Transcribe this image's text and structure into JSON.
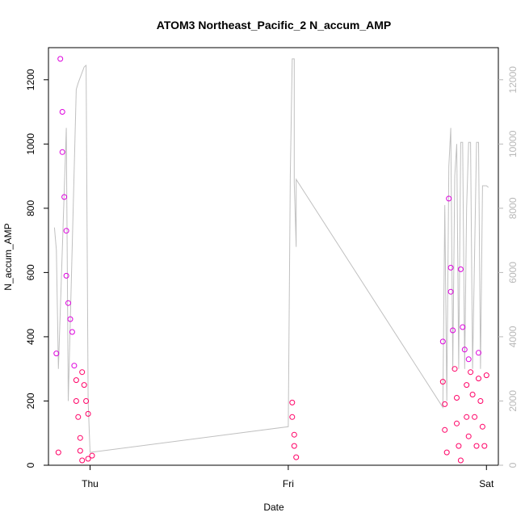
{
  "chart_data": {
    "type": "scatter",
    "title": "ATOM3 Northeast_Pacific_2 N_accum_AMP",
    "xlabel": "Date",
    "ylabel": "N_accum_AMP",
    "x_tick_labels": [
      "Thu",
      "Fri",
      "Sat"
    ],
    "x_tick_positions_days": [
      0,
      1,
      2
    ],
    "xlim_days": [
      -0.21,
      2.06
    ],
    "ylim_left": [
      0,
      1300
    ],
    "yticks_left": [
      0,
      200,
      400,
      600,
      800,
      1000,
      1200
    ],
    "ylim_right": [
      0,
      13000
    ],
    "yticks_right": [
      0,
      2000,
      4000,
      6000,
      8000,
      10000,
      12000
    ],
    "grid": false,
    "colors": {
      "scatter_low": "#ff0066",
      "scatter_high": "#dd00dd",
      "secondary_line": "#c0c0c0",
      "right_axis": "#b8b8b8"
    },
    "scatter_series": {
      "name": "N_accum_AMP",
      "x_days": [
        -0.17,
        -0.16,
        -0.15,
        -0.14,
        -0.14,
        -0.13,
        -0.12,
        -0.12,
        -0.11,
        -0.1,
        -0.09,
        -0.08,
        -0.07,
        -0.07,
        -0.06,
        -0.05,
        -0.05,
        -0.04,
        -0.04,
        -0.03,
        -0.02,
        -0.01,
        -0.01,
        0.01,
        1.02,
        1.02,
        1.03,
        1.03,
        1.04,
        1.78,
        1.78,
        1.79,
        1.79,
        1.8,
        1.81,
        1.82,
        1.82,
        1.83,
        1.84,
        1.85,
        1.85,
        1.86,
        1.87,
        1.87,
        1.88,
        1.89,
        1.9,
        1.9,
        1.91,
        1.91,
        1.92,
        1.93,
        1.94,
        1.95,
        1.96,
        1.96,
        1.97,
        1.98,
        1.99,
        2.0
      ],
      "y": [
        348,
        40,
        1265,
        1100,
        975,
        835,
        730,
        590,
        505,
        455,
        415,
        310,
        265,
        200,
        150,
        85,
        45,
        15,
        290,
        250,
        200,
        160,
        20,
        30,
        195,
        150,
        95,
        60,
        25,
        385,
        260,
        190,
        110,
        40,
        830,
        615,
        540,
        420,
        300,
        210,
        130,
        60,
        15,
        610,
        430,
        360,
        250,
        150,
        90,
        330,
        290,
        220,
        150,
        60,
        350,
        270,
        200,
        120,
        60,
        280
      ]
    },
    "line_series": {
      "name": "",
      "axis": "right",
      "x_days": [
        -0.18,
        -0.17,
        -0.16,
        -0.12,
        -0.11,
        -0.07,
        -0.06,
        -0.03,
        -0.02,
        -0.01,
        0.0,
        1.0,
        1.01,
        1.02,
        1.03,
        1.03,
        1.04,
        1.04,
        1.78,
        1.79,
        1.8,
        1.81,
        1.82,
        1.83,
        1.84,
        1.85,
        1.86,
        1.87,
        1.88,
        1.89,
        1.9,
        1.91,
        1.92,
        1.93,
        1.95,
        1.96,
        1.97,
        1.98,
        2.0,
        2.01
      ],
      "y": [
        7400,
        6700,
        3000,
        10500,
        2000,
        11700,
        11900,
        12400,
        12450,
        2000,
        400,
        1200,
        9000,
        12650,
        12650,
        8800,
        6800,
        8900,
        1800,
        8100,
        2000,
        9300,
        10500,
        3000,
        9000,
        10000,
        3000,
        10050,
        10050,
        3000,
        8000,
        10050,
        10050,
        3000,
        10050,
        10050,
        3000,
        8700,
        8700,
        8650
      ]
    }
  }
}
